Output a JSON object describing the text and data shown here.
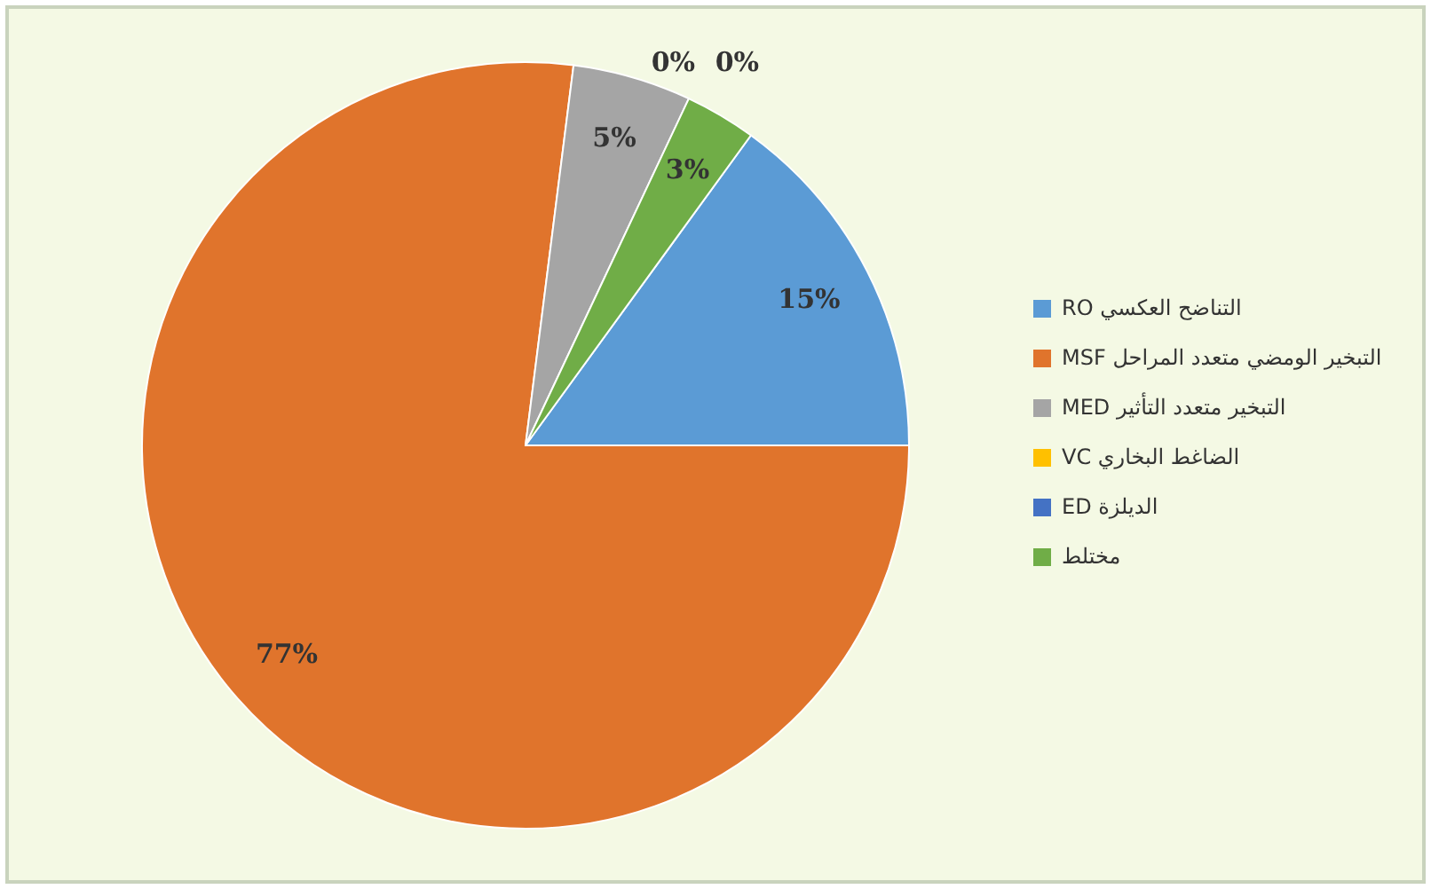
{
  "chart_data": {
    "type": "pie",
    "categories": [
      "التناضح العكسي RO",
      "التبخير الومضي متعدد المراحل MSF",
      "التبخير متعدد التأثير MED",
      "الضاغط البخاري VC",
      "الديلزة ED",
      "مختلط"
    ],
    "values": [
      15,
      77,
      5,
      0,
      0,
      3
    ],
    "colors": [
      "#5b9bd5",
      "#e0742c",
      "#a5a5a5",
      "#ffc000",
      "#4472c4",
      "#70ad47"
    ],
    "value_labels": [
      "15%",
      "77%",
      "5%",
      "0%",
      "0%",
      "3%"
    ],
    "legend": "right"
  }
}
